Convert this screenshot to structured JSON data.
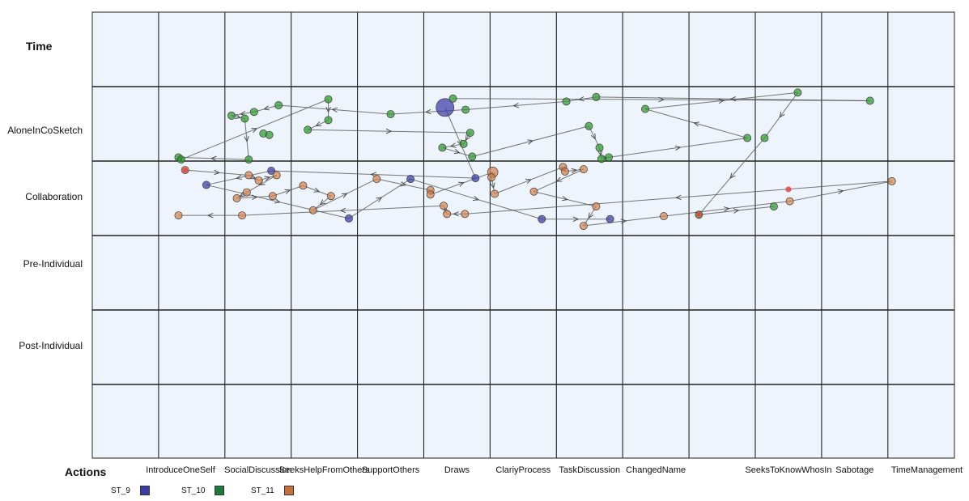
{
  "chart_data": {
    "type": "scatter",
    "y_title": "Time",
    "x_title": "Actions",
    "categories": [
      "IntroduceOneSelf",
      "SocialDiscussion",
      "SeeksHelpFromOthers",
      "SupportOthers",
      "Draws",
      "ClariyProcess",
      "TaskDiscussion",
      "ChangedName",
      "",
      "SeeksToKnowWhosIn",
      "Sabotage",
      "TimeManagement"
    ],
    "rows": [
      "AloneInCoSketch",
      "Collaboration",
      "Pre-Individual",
      "Post-Individual"
    ],
    "grid": true,
    "legend_position": "bottom-left",
    "series": [
      {
        "name": "ST_9",
        "color": "#3a3aa8",
        "points": [
          {
            "x": "IntroduceOneSelf",
            "y": "Collaboration",
            "offset": [
              0.72,
              0.32
            ]
          },
          {
            "x": "SocialDiscussion",
            "y": "Collaboration",
            "offset": [
              0.7,
              0.13
            ]
          },
          {
            "x": "SupportOthers",
            "y": "Collaboration",
            "offset": [
              0.8,
              0.24
            ]
          },
          {
            "x": "SeeksHelpFromOthers",
            "y": "Collaboration",
            "offset": [
              0.87,
              0.77
            ]
          },
          {
            "x": "Draws",
            "y": "AloneInCoSketch",
            "offset": [
              0.32,
              0.28
            ],
            "size": 2.4
          },
          {
            "x": "Draws",
            "y": "Collaboration",
            "offset": [
              0.78,
              0.23
            ]
          },
          {
            "x": "ClariyProcess",
            "y": "Collaboration",
            "offset": [
              0.78,
              0.78
            ]
          },
          {
            "x": "TaskDiscussion",
            "y": "Collaboration",
            "offset": [
              0.81,
              0.78
            ]
          }
        ],
        "path": [
          4,
          5,
          1,
          0,
          3,
          2,
          6,
          7
        ]
      },
      {
        "name": "ST_10",
        "color": "#2e9a2e",
        "points": [
          {
            "x": "IntroduceOneSelf",
            "y": "AloneInCoSketch",
            "offset": [
              0.3,
              0.95
            ]
          },
          {
            "x": "IntroduceOneSelf",
            "y": "AloneInCoSketch",
            "offset": [
              0.34,
              0.98
            ]
          },
          {
            "x": "SocialDiscussion",
            "y": "AloneInCoSketch",
            "offset": [
              0.1,
              0.39
            ]
          },
          {
            "x": "SocialDiscussion",
            "y": "AloneInCoSketch",
            "offset": [
              0.3,
              0.43
            ]
          },
          {
            "x": "SocialDiscussion",
            "y": "AloneInCoSketch",
            "offset": [
              0.44,
              0.34
            ]
          },
          {
            "x": "SocialDiscussion",
            "y": "AloneInCoSketch",
            "offset": [
              0.81,
              0.25
            ]
          },
          {
            "x": "SocialDiscussion",
            "y": "AloneInCoSketch",
            "offset": [
              0.58,
              0.63
            ]
          },
          {
            "x": "SocialDiscussion",
            "y": "AloneInCoSketch",
            "offset": [
              0.67,
              0.65
            ]
          },
          {
            "x": "SocialDiscussion",
            "y": "AloneInCoSketch",
            "offset": [
              0.36,
              0.98
            ]
          },
          {
            "x": "SeeksHelpFromOthers",
            "y": "AloneInCoSketch",
            "offset": [
              0.56,
              0.17
            ]
          },
          {
            "x": "SeeksHelpFromOthers",
            "y": "AloneInCoSketch",
            "offset": [
              0.56,
              0.45
            ]
          },
          {
            "x": "SeeksHelpFromOthers",
            "y": "AloneInCoSketch",
            "offset": [
              0.25,
              0.58
            ]
          },
          {
            "x": "SupportOthers",
            "y": "AloneInCoSketch",
            "offset": [
              0.5,
              0.37
            ]
          },
          {
            "x": "Draws",
            "y": "AloneInCoSketch",
            "offset": [
              0.44,
              0.16
            ]
          },
          {
            "x": "Draws",
            "y": "AloneInCoSketch",
            "offset": [
              0.63,
              0.31
            ]
          },
          {
            "x": "Draws",
            "y": "AloneInCoSketch",
            "offset": [
              0.7,
              0.62
            ]
          },
          {
            "x": "Draws",
            "y": "AloneInCoSketch",
            "offset": [
              0.6,
              0.77
            ]
          },
          {
            "x": "Draws",
            "y": "AloneInCoSketch",
            "offset": [
              0.28,
              0.82
            ]
          },
          {
            "x": "Draws",
            "y": "AloneInCoSketch",
            "offset": [
              0.73,
              0.94
            ]
          },
          {
            "x": "TaskDiscussion",
            "y": "AloneInCoSketch",
            "offset": [
              0.15,
              0.2
            ]
          },
          {
            "x": "TaskDiscussion",
            "y": "AloneInCoSketch",
            "offset": [
              0.6,
              0.14
            ]
          },
          {
            "x": "TaskDiscussion",
            "y": "AloneInCoSketch",
            "offset": [
              0.49,
              0.53
            ]
          },
          {
            "x": "TaskDiscussion",
            "y": "AloneInCoSketch",
            "offset": [
              0.65,
              0.82
            ]
          },
          {
            "x": "TaskDiscussion",
            "y": "AloneInCoSketch",
            "offset": [
              0.68,
              0.97
            ]
          },
          {
            "x": "TaskDiscussion",
            "y": "AloneInCoSketch",
            "offset": [
              0.79,
              0.95
            ]
          },
          {
            "x": "ChangedName",
            "y": "AloneInCoSketch",
            "offset": [
              0.34,
              0.3
            ]
          },
          {
            "x": "",
            "y": "AloneInCoSketch",
            "offset": [
              0.88,
              0.69
            ]
          },
          {
            "x": "SeeksToKnowWhosIn",
            "y": "AloneInCoSketch",
            "offset": [
              0.64,
              0.08
            ]
          },
          {
            "x": "SeeksToKnowWhosIn",
            "y": "AloneInCoSketch",
            "offset": [
              0.14,
              0.69
            ]
          },
          {
            "x": "Sabotage",
            "y": "AloneInCoSketch",
            "offset": [
              0.73,
              0.19
            ]
          },
          {
            "x": "",
            "y": "Collaboration",
            "offset": [
              0.15,
              0.72
            ]
          },
          {
            "x": "SeeksToKnowWhosIn",
            "y": "Collaboration",
            "offset": [
              0.28,
              0.61
            ]
          }
        ],
        "path": [
          13,
          29,
          20,
          19,
          14,
          12,
          5,
          4,
          2,
          3,
          8,
          0,
          1,
          9,
          10,
          11,
          15,
          16,
          17,
          18,
          21,
          22,
          23,
          24,
          26,
          25,
          27,
          28,
          30,
          31
        ]
      },
      {
        "name": "ST_11",
        "color": "#d4844e",
        "points": [
          {
            "x": "IntroduceOneSelf",
            "y": "Collaboration",
            "offset": [
              0.4,
              0.12
            ]
          },
          {
            "x": "SocialDiscussion",
            "y": "Collaboration",
            "offset": [
              0.36,
              0.19
            ]
          },
          {
            "x": "SocialDiscussion",
            "y": "Collaboration",
            "offset": [
              0.51,
              0.26
            ]
          },
          {
            "x": "SocialDiscussion",
            "y": "Collaboration",
            "offset": [
              0.78,
              0.19
            ]
          },
          {
            "x": "SocialDiscussion",
            "y": "Collaboration",
            "offset": [
              0.33,
              0.42
            ]
          },
          {
            "x": "SocialDiscussion",
            "y": "Collaboration",
            "offset": [
              0.18,
              0.5
            ]
          },
          {
            "x": "SocialDiscussion",
            "y": "Collaboration",
            "offset": [
              0.72,
              0.47
            ]
          },
          {
            "x": "SocialDiscussion",
            "y": "Collaboration",
            "offset": [
              0.26,
              0.73
            ]
          },
          {
            "x": "SeeksHelpFromOthers",
            "y": "Collaboration",
            "offset": [
              0.18,
              0.33
            ]
          },
          {
            "x": "SeeksHelpFromOthers",
            "y": "Collaboration",
            "offset": [
              0.6,
              0.47
            ]
          },
          {
            "x": "SeeksHelpFromOthers",
            "y": "Collaboration",
            "offset": [
              0.33,
              0.66
            ]
          },
          {
            "x": "SupportOthers",
            "y": "Collaboration",
            "offset": [
              0.29,
              0.24
            ]
          },
          {
            "x": "Draws",
            "y": "Collaboration",
            "offset": [
              0.1,
              0.39
            ]
          },
          {
            "x": "Draws",
            "y": "Collaboration",
            "offset": [
              0.1,
              0.45
            ]
          },
          {
            "x": "Draws",
            "y": "Collaboration",
            "offset": [
              0.3,
              0.6
            ]
          },
          {
            "x": "Draws",
            "y": "Collaboration",
            "offset": [
              0.35,
              0.71
            ]
          },
          {
            "x": "Draws",
            "y": "Collaboration",
            "offset": [
              0.62,
              0.71
            ]
          },
          {
            "x": "ClariyProcess",
            "y": "Collaboration",
            "offset": [
              0.04,
              0.15
            ],
            "size": 1.4
          },
          {
            "x": "ClariyProcess",
            "y": "Collaboration",
            "offset": [
              0.02,
              0.22
            ]
          },
          {
            "x": "ClariyProcess",
            "y": "Collaboration",
            "offset": [
              0.07,
              0.44
            ]
          },
          {
            "x": "ClariyProcess",
            "y": "Collaboration",
            "offset": [
              0.66,
              0.41
            ]
          },
          {
            "x": "TaskDiscussion",
            "y": "Collaboration",
            "offset": [
              0.1,
              0.08
            ]
          },
          {
            "x": "TaskDiscussion",
            "y": "Collaboration",
            "offset": [
              0.13,
              0.14
            ]
          },
          {
            "x": "TaskDiscussion",
            "y": "Collaboration",
            "offset": [
              0.41,
              0.11
            ]
          },
          {
            "x": "TaskDiscussion",
            "y": "Collaboration",
            "offset": [
              0.6,
              0.61
            ]
          },
          {
            "x": "TaskDiscussion",
            "y": "Collaboration",
            "offset": [
              0.41,
              0.87
            ]
          },
          {
            "x": "ChangedName",
            "y": "Collaboration",
            "offset": [
              0.62,
              0.74
            ]
          },
          {
            "x": "SeeksToKnowWhosIn",
            "y": "Collaboration",
            "offset": [
              0.52,
              0.54
            ]
          },
          {
            "x": "TimeManagement",
            "y": "Collaboration",
            "offset": [
              0.06,
              0.27
            ]
          },
          {
            "x": "IntroduceOneSelf",
            "y": "Collaboration",
            "offset": [
              0.3,
              0.73
            ]
          }
        ],
        "path": [
          0,
          1,
          2,
          3,
          4,
          5,
          6,
          8,
          9,
          10,
          11,
          12,
          13,
          17,
          18,
          19,
          21,
          22,
          23,
          20,
          24,
          25,
          26,
          27,
          28,
          16,
          15,
          14,
          7,
          29
        ]
      }
    ],
    "accents": [
      {
        "x": "IntroduceOneSelf",
        "y": "Collaboration",
        "offset": [
          0.4,
          0.12
        ],
        "color": "#e04444"
      },
      {
        "x": "",
        "y": "Collaboration",
        "offset": [
          0.15,
          0.72
        ],
        "color": "#e04444"
      },
      {
        "x": "SeeksToKnowWhosIn",
        "y": "Collaboration",
        "offset": [
          0.5,
          0.38
        ],
        "color": "#e04444"
      }
    ]
  },
  "legend": [
    {
      "label": "ST_9",
      "color": "#3a3aa8"
    },
    {
      "label": "ST_10",
      "color": "#1f7a3a"
    },
    {
      "label": "ST_11",
      "color": "#c8703a"
    }
  ],
  "colors": {
    "plot_background": "#eef4fb",
    "grid_line": "#222222",
    "arrow": "#555555"
  }
}
